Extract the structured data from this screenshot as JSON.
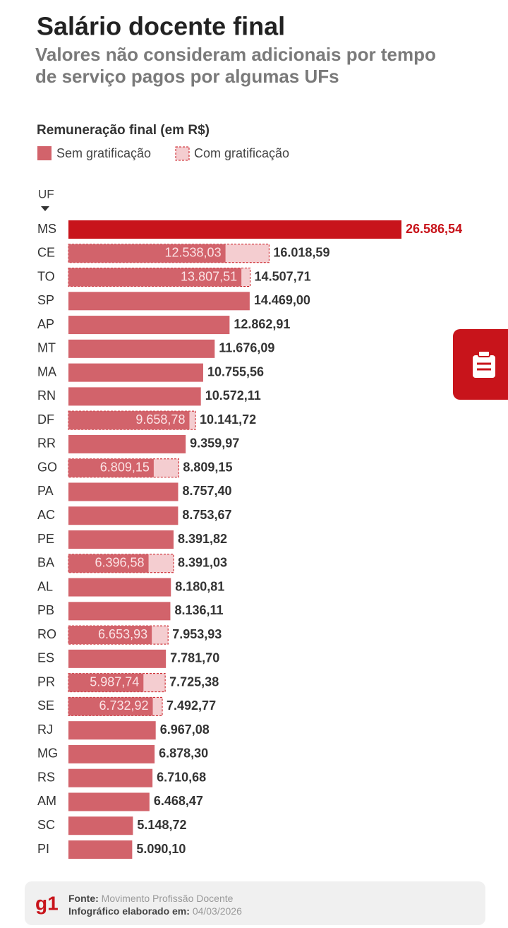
{
  "chart_data": {
    "type": "bar",
    "title": "Salário docente final",
    "subtitle": "Valores não consideram adicionais por tempo de serviço pagos por algumas UFs",
    "value_axis_label": "Remuneração final (em R$)",
    "category_axis_label": "UF",
    "categories": [
      "MS",
      "CE",
      "TO",
      "SP",
      "AP",
      "MT",
      "MA",
      "RN",
      "DF",
      "RR",
      "GO",
      "PA",
      "AC",
      "PE",
      "BA",
      "AL",
      "PB",
      "RO",
      "ES",
      "PR",
      "SE",
      "RJ",
      "MG",
      "RS",
      "AM",
      "SC",
      "PI"
    ],
    "highlight": {
      "category": "MS",
      "color": "#c8141b"
    },
    "series": [
      {
        "name": "Sem gratificação",
        "color": "#d2636b",
        "values": [
          26586.54,
          12538.03,
          13807.51,
          14469.0,
          12862.91,
          11676.09,
          10755.56,
          10572.11,
          9658.78,
          9359.97,
          6809.15,
          8757.4,
          8753.67,
          8391.82,
          6396.58,
          8180.81,
          8136.11,
          6653.93,
          7781.7,
          5987.74,
          6732.92,
          6967.08,
          6878.3,
          6710.68,
          6468.47,
          5148.72,
          5090.1
        ],
        "value_labels": [
          "26.586,54",
          "12.538,03",
          "13.807,51",
          "14.469,00",
          "12.862,91",
          "11.676,09",
          "10.755,56",
          "10.572,11",
          "9.658,78",
          "9.359,97",
          "6.809,15",
          "8.757,40",
          "8.753,67",
          "8.391,82",
          "6.396,58",
          "8.180,81",
          "8.136,11",
          "6.653,93",
          "7.781,70",
          "5.987,74",
          "6.732,92",
          "6.967,08",
          "6.878,30",
          "6.710,68",
          "6.468,47",
          "5.148,72",
          "5.090,10"
        ]
      },
      {
        "name": "Com gratificação",
        "color": "#f4cdd0",
        "dashed": true,
        "values": [
          null,
          16018.59,
          14507.71,
          null,
          null,
          null,
          null,
          null,
          10141.72,
          null,
          8809.15,
          null,
          null,
          null,
          8391.03,
          null,
          null,
          7953.93,
          null,
          7725.38,
          7492.77,
          null,
          null,
          null,
          null,
          null,
          null
        ],
        "value_labels": [
          null,
          "16.018,59",
          "14.507,71",
          null,
          null,
          null,
          null,
          null,
          "10.141,72",
          null,
          "8.809,15",
          null,
          null,
          null,
          "8.391,03",
          null,
          null,
          "7.953,93",
          null,
          "7.725,38",
          "7.492,77",
          null,
          null,
          null,
          null,
          null,
          null
        ]
      }
    ]
  },
  "footer": {
    "source_label": "Fonte:",
    "source": "Movimento Profissão Docente",
    "date_label": "Infográfico elaborado em:",
    "date": "04/03/2026",
    "logo": "g1"
  }
}
